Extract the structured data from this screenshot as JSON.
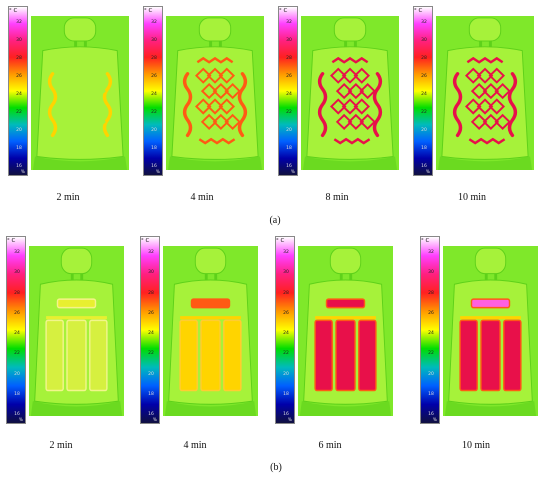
{
  "panels": [
    {
      "label": "(a)",
      "cells": [
        {
          "time": "2 min",
          "pattern": "wave",
          "intensity": 0.1
        },
        {
          "time": "4 min",
          "pattern": "wave",
          "intensity": 0.45
        },
        {
          "time": "8 min",
          "pattern": "wave",
          "intensity": 0.7
        },
        {
          "time": "10 min",
          "pattern": "wave",
          "intensity": 0.95
        }
      ]
    },
    {
      "label": "(b)",
      "cells": [
        {
          "time": "2 min",
          "pattern": "block",
          "intensity": 0.1
        },
        {
          "time": "4 min",
          "pattern": "block",
          "intensity": 0.4
        },
        {
          "time": "6 min",
          "pattern": "block",
          "intensity": 0.75
        },
        {
          "time": "10 min",
          "pattern": "block",
          "intensity": 0.95
        }
      ]
    }
  ],
  "scale": {
    "unit": "° C",
    "ticks": [
      "32",
      "30",
      "28",
      "26",
      "24",
      "22",
      "20",
      "18",
      "16"
    ],
    "percent_mark": "%",
    "colors": [
      "#ffffff",
      "#ff40ff",
      "#ff2080",
      "#ff2020",
      "#ff9900",
      "#ffff00",
      "#00dd00",
      "#00bbbb",
      "#0060ff",
      "#0000aa",
      "#101040"
    ]
  },
  "colors": {
    "background_seat": "#7fe82a",
    "seat_light": "#a6f23a",
    "seat_dark": "#5ed11a",
    "warm": "#ffd400",
    "hot": "#ff5a14",
    "hottest": "#e8104a",
    "peak": "#ff60e0"
  }
}
